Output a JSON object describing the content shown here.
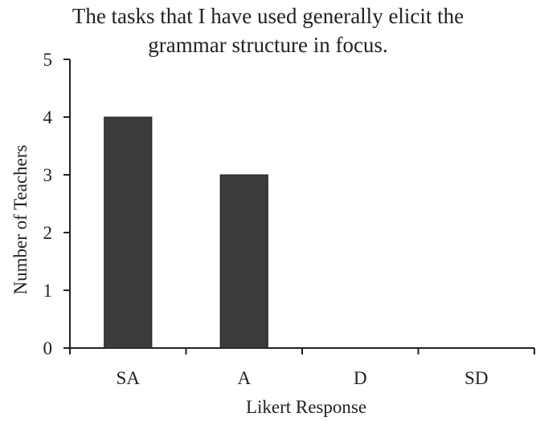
{
  "chart_data": {
    "type": "bar",
    "title_lines": [
      "The tasks that I have used generally elicit the",
      "grammar structure in focus."
    ],
    "categories": [
      "SA",
      "A",
      "D",
      "SD"
    ],
    "values": [
      4,
      3,
      0,
      0
    ],
    "xlabel": "Likert Response",
    "ylabel": "Number of Teachers",
    "ylim": [
      0,
      5
    ],
    "yticks": [
      0,
      1,
      2,
      3,
      4,
      5
    ],
    "grid": false,
    "legend": "none",
    "bar_color": "#3b3b3b"
  }
}
